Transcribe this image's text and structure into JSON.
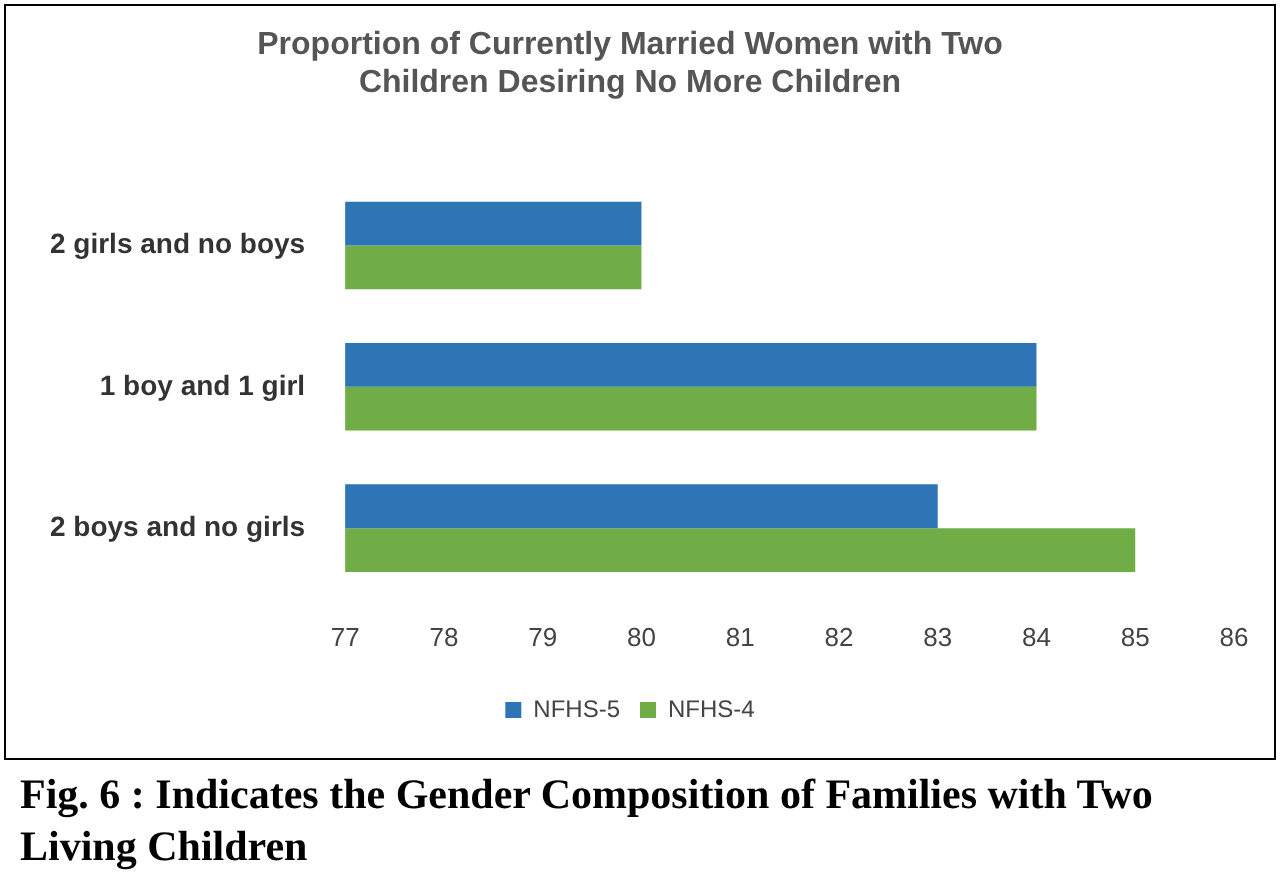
{
  "chart_data": {
    "type": "bar",
    "orientation": "horizontal",
    "title": "Proportion of Currently Married Women with Two Children Desiring No More Children",
    "categories": [
      "2 girls and no boys",
      "1 boy and 1 girl",
      "2 boys and no girls"
    ],
    "series": [
      {
        "name": "NFHS-5",
        "color": "#2e75b6",
        "values": [
          80,
          84,
          83
        ]
      },
      {
        "name": "NFHS-4",
        "color": "#70ad47",
        "values": [
          80,
          84,
          85
        ]
      }
    ],
    "xlim": [
      77,
      86
    ],
    "xticks": [
      77,
      78,
      79,
      80,
      81,
      82,
      83,
      84,
      85,
      86
    ],
    "grid": false,
    "legend": "bottom",
    "annotations": [
      "Fig. 6 :   Indicates the Gender Composition of Families with Two Living Children"
    ]
  }
}
